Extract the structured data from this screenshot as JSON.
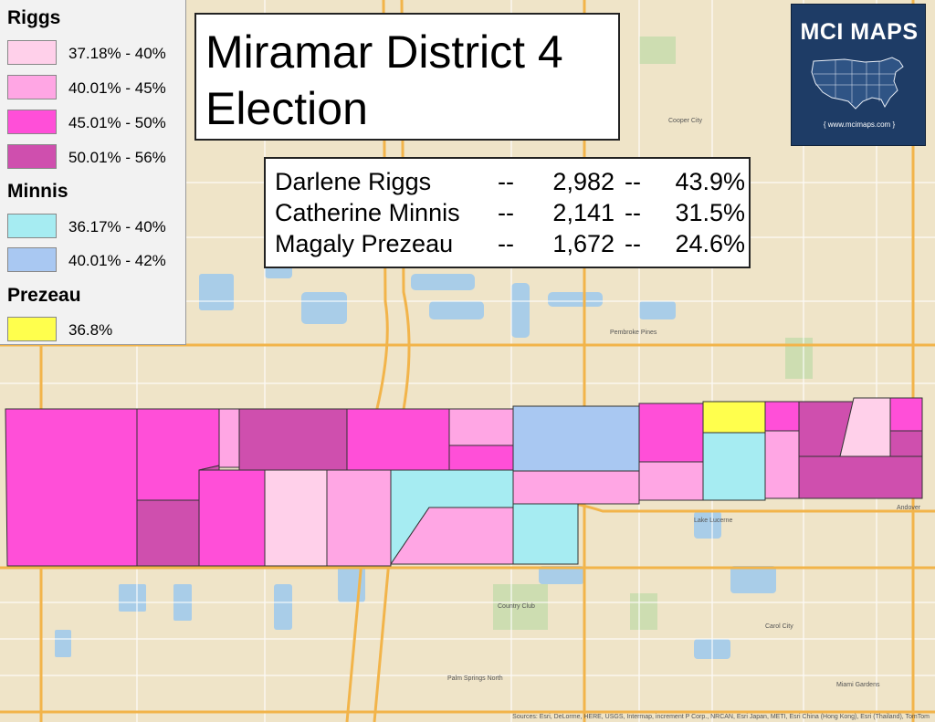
{
  "title": {
    "line1": "Miramar District 4",
    "line2": "Election"
  },
  "legend": {
    "groups": [
      {
        "name": "Riggs",
        "items": [
          {
            "label": "37.18% - 40%",
            "color": "#ffd0ea"
          },
          {
            "label": "40.01% - 45%",
            "color": "#ffa6e4"
          },
          {
            "label": "45.01% - 50%",
            "color": "#ff4fd8"
          },
          {
            "label": "50.01% - 56%",
            "color": "#cf4fae"
          }
        ]
      },
      {
        "name": "Minnis",
        "items": [
          {
            "label": "36.17% - 40%",
            "color": "#a6ecf2"
          },
          {
            "label": "40.01% - 42%",
            "color": "#a9c8f2"
          }
        ]
      },
      {
        "name": "Prezeau",
        "items": [
          {
            "label": "36.8%",
            "color": "#ffff4d"
          }
        ]
      }
    ]
  },
  "results": [
    {
      "name": "Darlene Riggs",
      "sep": "--",
      "votes": "2,982",
      "pct": "43.9%"
    },
    {
      "name": "Catherine Minnis",
      "sep": "--",
      "votes": "2,141",
      "pct": "31.5%"
    },
    {
      "name": "Magaly Prezeau",
      "sep": "--",
      "votes": "1,672",
      "pct": "24.6%"
    }
  ],
  "logo": {
    "title": "MCI MAPS",
    "url": "{ www.mcimaps.com }",
    "icon": "usa-map-icon"
  },
  "map_labels": {
    "pembroke_pines": "Pembroke Pines",
    "country_club": "Country Club",
    "lake_lucerne": "Lake Lucerne",
    "andover": "Andover",
    "carol_city": "Carol City",
    "miami_gardens": "Miami Gardens",
    "cooper_city": "Cooper City",
    "palm_springs_north": "Palm Springs North"
  },
  "attribution": "Sources: Esri, DeLorme, HERE, USGS, Intermap, increment P Corp., NRCAN, Esri Japan, METI, Esri China (Hong Kong), Esri (Thailand), TomTom"
}
